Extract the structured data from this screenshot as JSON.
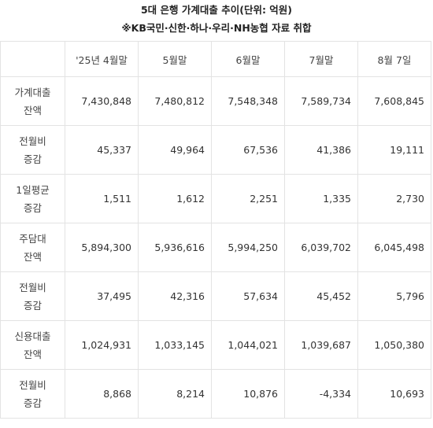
{
  "title": "5대 은행 가계대출 추이(단위: 억원)",
  "subtitle": "※KB국민·신한·하나·우리·NH농협 자료 취합",
  "columns": [
    "",
    "'25년 4월말",
    "5월말",
    "6월말",
    "7월말",
    "8월 7일"
  ],
  "rows": [
    {
      "label": [
        "가계대출",
        "잔액"
      ],
      "values": [
        "7,430,848",
        "7,480,812",
        "7,548,348",
        "7,589,734",
        "7,608,845"
      ]
    },
    {
      "label": [
        "전월비",
        "증감"
      ],
      "values": [
        "45,337",
        "49,964",
        "67,536",
        "41,386",
        "19,111"
      ]
    },
    {
      "label": [
        "1일평균",
        "증감"
      ],
      "values": [
        "1,511",
        "1,612",
        "2,251",
        "1,335",
        "2,730"
      ]
    },
    {
      "label": [
        "주담대",
        "잔액"
      ],
      "values": [
        "5,894,300",
        "5,936,616",
        "5,994,250",
        "6,039,702",
        "6,045,498"
      ]
    },
    {
      "label": [
        "전월비",
        "증감"
      ],
      "values": [
        "37,495",
        "42,316",
        "57,634",
        "45,452",
        "5,796"
      ]
    },
    {
      "label": [
        "신용대출",
        "잔액"
      ],
      "values": [
        "1,024,931",
        "1,033,145",
        "1,044,021",
        "1,039,687",
        "1,050,380"
      ]
    },
    {
      "label": [
        "전월비",
        "증감"
      ],
      "values": [
        "8,868",
        "8,214",
        "10,876",
        "-4,334",
        "10,693"
      ]
    }
  ]
}
